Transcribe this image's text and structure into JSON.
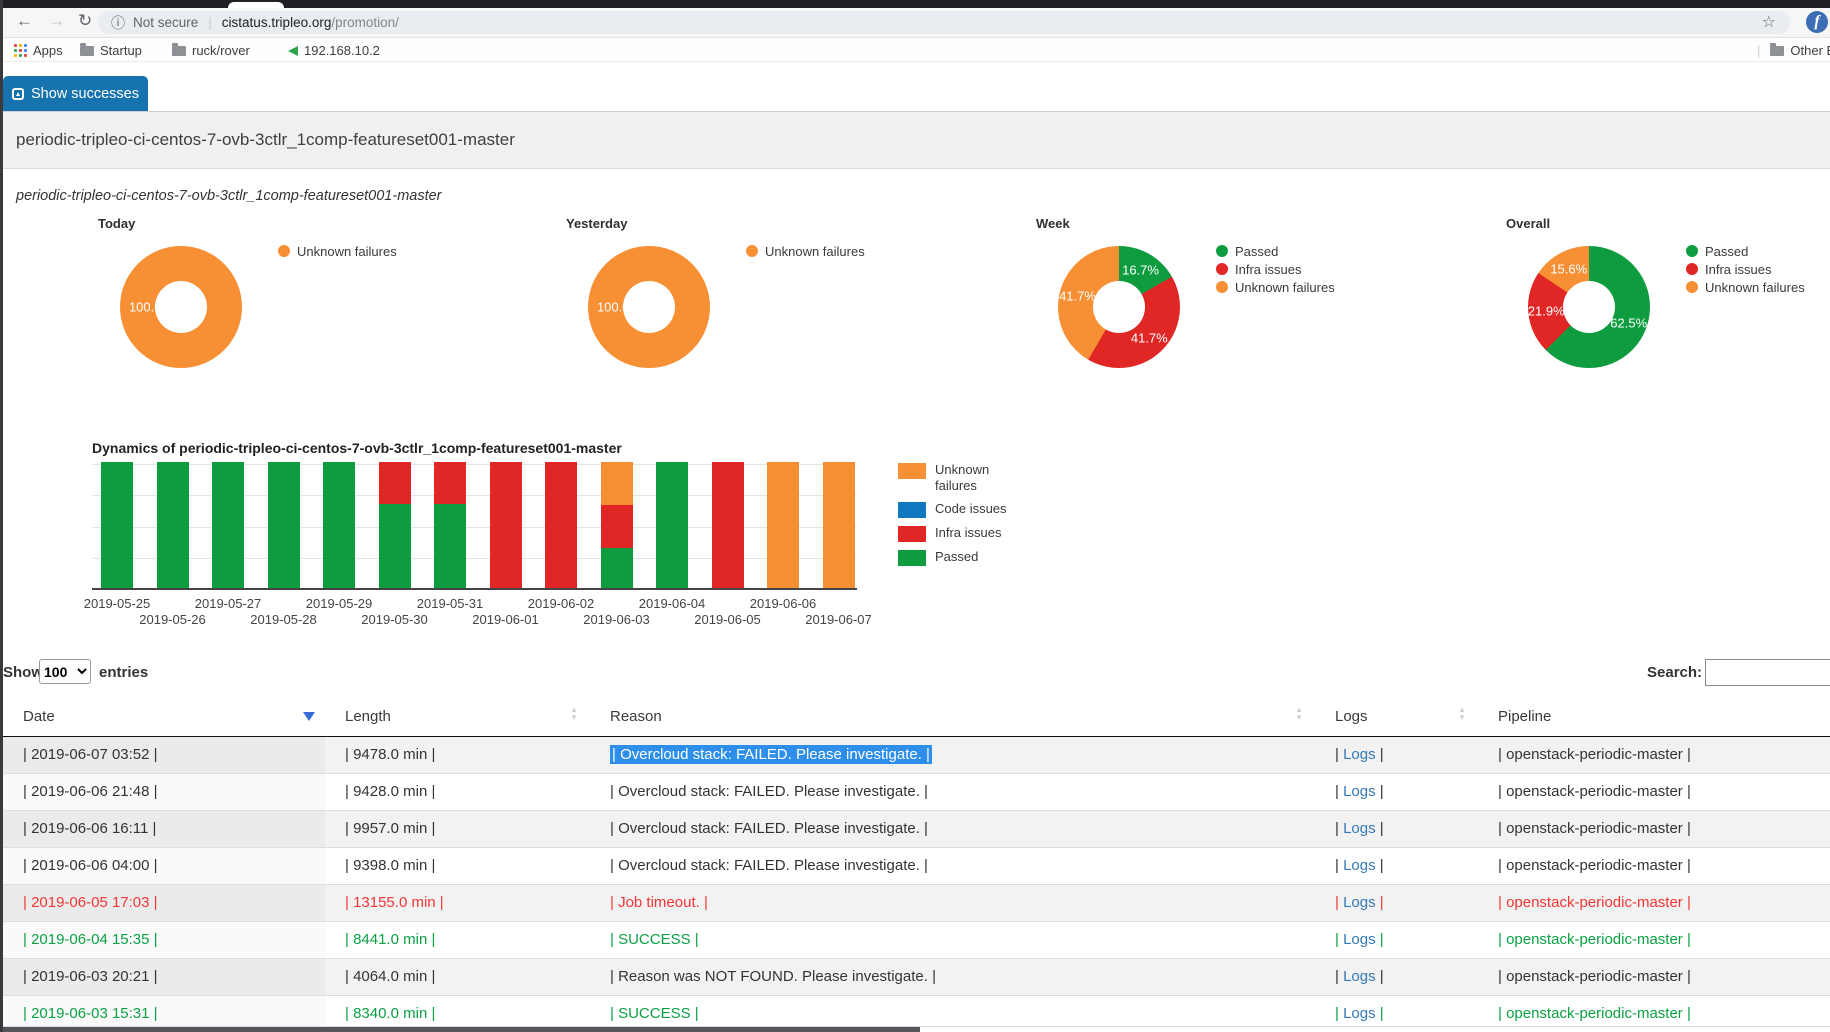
{
  "browser": {
    "security_text": "Not secure",
    "url_host": "cistatus.tripleo.org",
    "url_path": "/promotion/",
    "bookmarks": {
      "apps": "Apps",
      "startup": "Startup",
      "ruckrover": "ruck/rover",
      "ip": "192.168.10.2",
      "other": "Other Bookmarks"
    }
  },
  "toolbar_button": {
    "label": "Show successes"
  },
  "page": {
    "heading": "periodic-tripleo-ci-centos-7-ovb-3ctlr_1comp-featureset001-master",
    "subtitle": "periodic-tripleo-ci-centos-7-ovb-3ctlr_1comp-featureset001-master"
  },
  "colors": {
    "Passed": "#0e9c3f",
    "Infra issues": "#e02726",
    "Unknown failures": "#f78f35",
    "Code issues": "#1079bf"
  },
  "chart_data": [
    {
      "type": "pie",
      "title": "Today",
      "labels": [
        "Unknown failures"
      ],
      "values": [
        100
      ],
      "slice_labels": [
        "100.0%"
      ],
      "legend": [
        "Unknown failures"
      ],
      "legend_position": "right"
    },
    {
      "type": "pie",
      "title": "Yesterday",
      "labels": [
        "Unknown failures"
      ],
      "values": [
        100
      ],
      "slice_labels": [
        "100.0%"
      ],
      "legend": [
        "Unknown failures"
      ],
      "legend_position": "right"
    },
    {
      "type": "pie",
      "title": "Week",
      "labels": [
        "Passed",
        "Infra issues",
        "Unknown failures"
      ],
      "values": [
        16.7,
        41.7,
        41.7
      ],
      "slice_labels": [
        "16.7%",
        "41.7%",
        "41.7%"
      ],
      "legend": [
        "Passed",
        "Infra issues",
        "Unknown failures"
      ],
      "legend_position": "right"
    },
    {
      "type": "pie",
      "title": "Overall",
      "labels": [
        "Passed",
        "Infra issues",
        "Unknown failures"
      ],
      "values": [
        62.5,
        21.9,
        15.6
      ],
      "slice_labels": [
        "62.5%",
        "21.9%",
        "15.6%"
      ],
      "legend": [
        "Passed",
        "Infra issues",
        "Unknown failures"
      ],
      "legend_position": "right"
    },
    {
      "type": "bar",
      "stacked": true,
      "percent": true,
      "grid": true,
      "ylim": [
        0,
        100
      ],
      "title": "Dynamics of periodic-tripleo-ci-centos-7-ovb-3ctlr_1comp-featureset001-master",
      "categories": [
        "2019-05-25",
        "2019-05-26",
        "2019-05-27",
        "2019-05-28",
        "2019-05-29",
        "2019-05-30",
        "2019-05-31",
        "2019-06-01",
        "2019-06-02",
        "2019-06-03",
        "2019-06-04",
        "2019-06-05",
        "2019-06-06",
        "2019-06-07"
      ],
      "series": [
        {
          "name": "Passed",
          "values": [
            100,
            100,
            100,
            100,
            100,
            66.7,
            66.7,
            0,
            0,
            32,
            100,
            0,
            0,
            0
          ]
        },
        {
          "name": "Code issues",
          "values": [
            0,
            0,
            0,
            0,
            0,
            0,
            0,
            0,
            0,
            0,
            0,
            0,
            0,
            0
          ]
        },
        {
          "name": "Infra issues",
          "values": [
            0,
            0,
            0,
            0,
            0,
            33.3,
            33.3,
            100,
            100,
            34,
            0,
            100,
            0,
            0
          ]
        },
        {
          "name": "Unknown failures",
          "values": [
            0,
            0,
            0,
            0,
            0,
            0,
            0,
            0,
            0,
            34,
            0,
            0,
            100,
            100
          ]
        }
      ],
      "legend_order": [
        "Unknown failures",
        "Code issues",
        "Infra issues",
        "Passed"
      ],
      "legend_position": "right"
    }
  ],
  "table": {
    "controls": {
      "show_label": "Show",
      "page_size": "100",
      "entries_label": "entries",
      "search_label": "Search:",
      "search_value": ""
    },
    "headers": [
      "Date",
      "Length",
      "Reason",
      "Logs",
      "Pipeline"
    ],
    "sorted_column": "Date",
    "sort_direction": "descending",
    "logs_cell": {
      "before": "|",
      "label": "Logs",
      "after": "|"
    },
    "rows": [
      {
        "date": "| 2019-06-07 03:52 |",
        "length": "| 9478.0 min |",
        "reason": "| Overcloud stack: FAILED. Please investigate. |",
        "pipeline": "| openstack-periodic-master |",
        "status": "default",
        "reason_selected": true
      },
      {
        "date": "| 2019-06-06 21:48 |",
        "length": "| 9428.0 min |",
        "reason": "| Overcloud stack: FAILED. Please investigate. |",
        "pipeline": "| openstack-periodic-master |",
        "status": "default",
        "reason_selected": false
      },
      {
        "date": "| 2019-06-06 16:11 |",
        "length": "| 9957.0 min |",
        "reason": "| Overcloud stack: FAILED. Please investigate. |",
        "pipeline": "| openstack-periodic-master |",
        "status": "default",
        "reason_selected": false
      },
      {
        "date": "| 2019-06-06 04:00 |",
        "length": "| 9398.0 min |",
        "reason": "| Overcloud stack: FAILED. Please investigate. |",
        "pipeline": "| openstack-periodic-master |",
        "status": "default",
        "reason_selected": false
      },
      {
        "date": "| 2019-06-05 17:03 |",
        "length": "| 13155.0 min |",
        "reason": "| Job timeout. |",
        "pipeline": "| openstack-periodic-master |",
        "status": "danger",
        "reason_selected": false
      },
      {
        "date": "| 2019-06-04 15:35 |",
        "length": "| 8441.0 min |",
        "reason": "| SUCCESS |",
        "pipeline": "| openstack-periodic-master |",
        "status": "success",
        "reason_selected": false
      },
      {
        "date": "| 2019-06-03 20:21 |",
        "length": "| 4064.0 min |",
        "reason": "| Reason was NOT FOUND. Please investigate. |",
        "pipeline": "| openstack-periodic-master |",
        "status": "default",
        "reason_selected": false
      },
      {
        "date": "| 2019-06-03 15:31 |",
        "length": "| 8340.0 min |",
        "reason": "| SUCCESS |",
        "pipeline": "| openstack-periodic-master |",
        "status": "success",
        "reason_selected": false
      }
    ]
  }
}
